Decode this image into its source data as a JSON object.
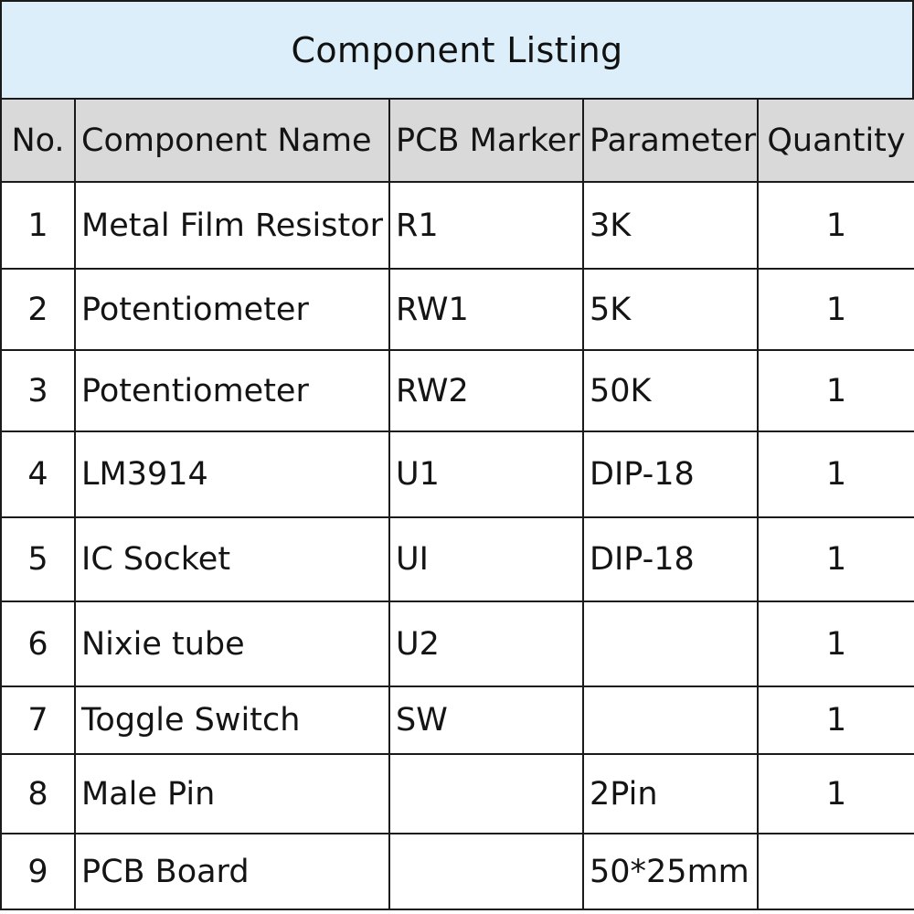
{
  "title": "Component Listing",
  "columns": {
    "no": "No.",
    "name": "Component Name",
    "marker": "PCB Marker",
    "parameter": "Parameter",
    "quantity": "Quantity"
  },
  "rows": [
    {
      "no": "1",
      "name": "Metal Film Resistor",
      "marker": "R1",
      "parameter": "3K",
      "quantity": "1"
    },
    {
      "no": "2",
      "name": "Potentiometer",
      "marker": "RW1",
      "parameter": "5K",
      "quantity": "1"
    },
    {
      "no": "3",
      "name": "Potentiometer",
      "marker": "RW2",
      "parameter": "50K",
      "quantity": "1"
    },
    {
      "no": "4",
      "name": "LM3914",
      "marker": "U1",
      "parameter": "DIP-18",
      "quantity": "1"
    },
    {
      "no": "5",
      "name": "IC Socket",
      "marker": "UI",
      "parameter": "DIP-18",
      "quantity": "1"
    },
    {
      "no": "6",
      "name": "Nixie tube",
      "marker": "U2",
      "parameter": "",
      "quantity": "1"
    },
    {
      "no": "7",
      "name": "Toggle Switch",
      "marker": "SW",
      "parameter": "",
      "quantity": "1"
    },
    {
      "no": "8",
      "name": "Male Pin",
      "marker": "",
      "parameter": "2Pin",
      "quantity": "1"
    },
    {
      "no": "9",
      "name": "PCB Board",
      "marker": "",
      "parameter": "50*25mm",
      "quantity": ""
    }
  ]
}
